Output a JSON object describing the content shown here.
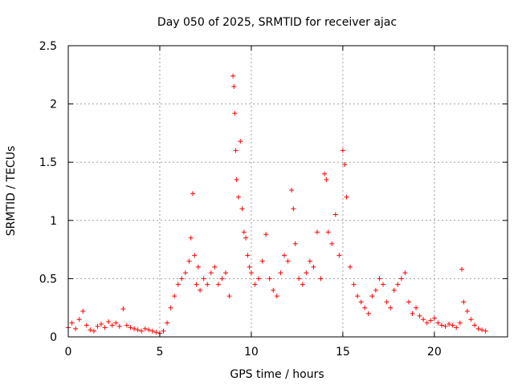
{
  "chart_data": {
    "type": "scatter",
    "title": "Day 050 of 2025, SRMTID for receiver ajac",
    "xlabel": "GPS time / hours",
    "ylabel": "SRMTID / TECUs",
    "xlim": [
      0,
      24
    ],
    "ylim": [
      0,
      2.5
    ],
    "xticks": [
      "0",
      "5",
      "10",
      "15",
      "20"
    ],
    "yticks": [
      "0",
      "0.5",
      "1",
      "1.5",
      "2",
      "2.5"
    ],
    "grid": true,
    "marker": "+",
    "color": "#ff0000",
    "series": [
      {
        "name": "SRMTID",
        "x": [
          0.0,
          0.2,
          0.4,
          0.6,
          0.8,
          1.0,
          1.2,
          1.4,
          1.6,
          1.8,
          2.0,
          2.2,
          2.4,
          2.6,
          2.8,
          3.0,
          3.2,
          3.4,
          3.6,
          3.8,
          4.0,
          4.2,
          4.4,
          4.6,
          4.8,
          5.0,
          5.2,
          5.4,
          5.6,
          5.8,
          6.0,
          6.2,
          6.4,
          6.6,
          6.7,
          6.8,
          6.9,
          7.0,
          7.1,
          7.2,
          7.4,
          7.6,
          7.8,
          8.0,
          8.2,
          8.4,
          8.6,
          8.8,
          9.0,
          9.05,
          9.1,
          9.15,
          9.2,
          9.3,
          9.4,
          9.5,
          9.6,
          9.7,
          9.8,
          9.9,
          10.0,
          10.2,
          10.4,
          10.6,
          10.8,
          11.0,
          11.2,
          11.4,
          11.6,
          11.8,
          12.0,
          12.2,
          12.3,
          12.4,
          12.6,
          12.8,
          13.0,
          13.2,
          13.4,
          13.6,
          13.8,
          14.0,
          14.1,
          14.2,
          14.4,
          14.6,
          14.8,
          15.0,
          15.1,
          15.2,
          15.4,
          15.6,
          15.8,
          16.0,
          16.2,
          16.4,
          16.6,
          16.8,
          17.0,
          17.2,
          17.4,
          17.6,
          17.8,
          18.0,
          18.2,
          18.4,
          18.6,
          18.8,
          19.0,
          19.2,
          19.4,
          19.6,
          19.8,
          20.0,
          20.2,
          20.4,
          20.6,
          20.8,
          21.0,
          21.2,
          21.4,
          21.5,
          21.6,
          21.8,
          22.0,
          22.2,
          22.4,
          22.6,
          22.8
        ],
        "y": [
          0.08,
          0.12,
          0.07,
          0.15,
          0.22,
          0.1,
          0.06,
          0.05,
          0.09,
          0.11,
          0.08,
          0.13,
          0.1,
          0.12,
          0.09,
          0.24,
          0.1,
          0.08,
          0.07,
          0.06,
          0.05,
          0.07,
          0.06,
          0.05,
          0.04,
          0.03,
          0.05,
          0.12,
          0.25,
          0.35,
          0.45,
          0.5,
          0.55,
          0.65,
          0.85,
          1.23,
          0.7,
          0.45,
          0.6,
          0.4,
          0.5,
          0.45,
          0.55,
          0.6,
          0.45,
          0.5,
          0.55,
          0.35,
          2.24,
          2.15,
          1.92,
          1.6,
          1.35,
          1.2,
          1.68,
          1.1,
          0.9,
          0.85,
          0.7,
          0.6,
          0.55,
          0.45,
          0.5,
          0.65,
          0.88,
          0.5,
          0.4,
          0.35,
          0.55,
          0.7,
          0.65,
          1.26,
          1.1,
          0.8,
          0.5,
          0.45,
          0.55,
          0.65,
          0.6,
          0.9,
          0.5,
          1.4,
          1.35,
          0.9,
          0.8,
          1.05,
          0.7,
          1.6,
          1.48,
          1.2,
          0.6,
          0.45,
          0.35,
          0.3,
          0.25,
          0.2,
          0.35,
          0.4,
          0.5,
          0.45,
          0.3,
          0.25,
          0.4,
          0.45,
          0.5,
          0.55,
          0.3,
          0.2,
          0.25,
          0.18,
          0.15,
          0.12,
          0.14,
          0.16,
          0.12,
          0.1,
          0.09,
          0.11,
          0.1,
          0.08,
          0.12,
          0.58,
          0.3,
          0.22,
          0.15,
          0.1,
          0.07,
          0.06,
          0.05
        ]
      }
    ]
  }
}
